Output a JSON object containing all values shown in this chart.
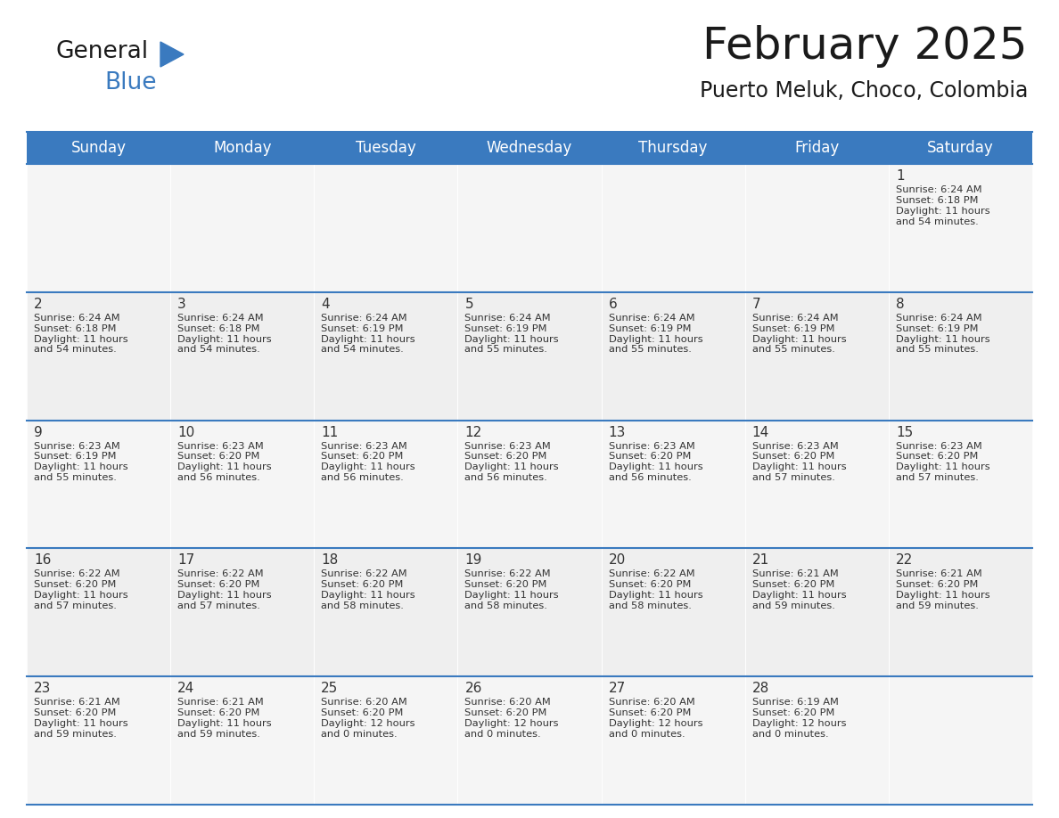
{
  "title": "February 2025",
  "subtitle": "Puerto Meluk, Choco, Colombia",
  "header_color": "#3a7abf",
  "header_text_color": "#ffffff",
  "cell_bg_odd": "#efefef",
  "cell_bg_even": "#ffffff",
  "cell_border_color": "#3a7abf",
  "text_color": "#333333",
  "day_names": [
    "Sunday",
    "Monday",
    "Tuesday",
    "Wednesday",
    "Thursday",
    "Friday",
    "Saturday"
  ],
  "title_fontsize": 36,
  "subtitle_fontsize": 17,
  "header_fontsize": 12,
  "day_num_fontsize": 11,
  "cell_text_fontsize": 8.2,
  "logo_text_general": "General",
  "logo_text_blue": "Blue",
  "calendar": [
    [
      null,
      null,
      null,
      null,
      null,
      null,
      {
        "day": 1,
        "sunrise": "6:24 AM",
        "sunset": "6:18 PM",
        "daylight_line1": "Daylight: 11 hours",
        "daylight_line2": "and 54 minutes."
      }
    ],
    [
      {
        "day": 2,
        "sunrise": "6:24 AM",
        "sunset": "6:18 PM",
        "daylight_line1": "Daylight: 11 hours",
        "daylight_line2": "and 54 minutes."
      },
      {
        "day": 3,
        "sunrise": "6:24 AM",
        "sunset": "6:18 PM",
        "daylight_line1": "Daylight: 11 hours",
        "daylight_line2": "and 54 minutes."
      },
      {
        "day": 4,
        "sunrise": "6:24 AM",
        "sunset": "6:19 PM",
        "daylight_line1": "Daylight: 11 hours",
        "daylight_line2": "and 54 minutes."
      },
      {
        "day": 5,
        "sunrise": "6:24 AM",
        "sunset": "6:19 PM",
        "daylight_line1": "Daylight: 11 hours",
        "daylight_line2": "and 55 minutes."
      },
      {
        "day": 6,
        "sunrise": "6:24 AM",
        "sunset": "6:19 PM",
        "daylight_line1": "Daylight: 11 hours",
        "daylight_line2": "and 55 minutes."
      },
      {
        "day": 7,
        "sunrise": "6:24 AM",
        "sunset": "6:19 PM",
        "daylight_line1": "Daylight: 11 hours",
        "daylight_line2": "and 55 minutes."
      },
      {
        "day": 8,
        "sunrise": "6:24 AM",
        "sunset": "6:19 PM",
        "daylight_line1": "Daylight: 11 hours",
        "daylight_line2": "and 55 minutes."
      }
    ],
    [
      {
        "day": 9,
        "sunrise": "6:23 AM",
        "sunset": "6:19 PM",
        "daylight_line1": "Daylight: 11 hours",
        "daylight_line2": "and 55 minutes."
      },
      {
        "day": 10,
        "sunrise": "6:23 AM",
        "sunset": "6:20 PM",
        "daylight_line1": "Daylight: 11 hours",
        "daylight_line2": "and 56 minutes."
      },
      {
        "day": 11,
        "sunrise": "6:23 AM",
        "sunset": "6:20 PM",
        "daylight_line1": "Daylight: 11 hours",
        "daylight_line2": "and 56 minutes."
      },
      {
        "day": 12,
        "sunrise": "6:23 AM",
        "sunset": "6:20 PM",
        "daylight_line1": "Daylight: 11 hours",
        "daylight_line2": "and 56 minutes."
      },
      {
        "day": 13,
        "sunrise": "6:23 AM",
        "sunset": "6:20 PM",
        "daylight_line1": "Daylight: 11 hours",
        "daylight_line2": "and 56 minutes."
      },
      {
        "day": 14,
        "sunrise": "6:23 AM",
        "sunset": "6:20 PM",
        "daylight_line1": "Daylight: 11 hours",
        "daylight_line2": "and 57 minutes."
      },
      {
        "day": 15,
        "sunrise": "6:23 AM",
        "sunset": "6:20 PM",
        "daylight_line1": "Daylight: 11 hours",
        "daylight_line2": "and 57 minutes."
      }
    ],
    [
      {
        "day": 16,
        "sunrise": "6:22 AM",
        "sunset": "6:20 PM",
        "daylight_line1": "Daylight: 11 hours",
        "daylight_line2": "and 57 minutes."
      },
      {
        "day": 17,
        "sunrise": "6:22 AM",
        "sunset": "6:20 PM",
        "daylight_line1": "Daylight: 11 hours",
        "daylight_line2": "and 57 minutes."
      },
      {
        "day": 18,
        "sunrise": "6:22 AM",
        "sunset": "6:20 PM",
        "daylight_line1": "Daylight: 11 hours",
        "daylight_line2": "and 58 minutes."
      },
      {
        "day": 19,
        "sunrise": "6:22 AM",
        "sunset": "6:20 PM",
        "daylight_line1": "Daylight: 11 hours",
        "daylight_line2": "and 58 minutes."
      },
      {
        "day": 20,
        "sunrise": "6:22 AM",
        "sunset": "6:20 PM",
        "daylight_line1": "Daylight: 11 hours",
        "daylight_line2": "and 58 minutes."
      },
      {
        "day": 21,
        "sunrise": "6:21 AM",
        "sunset": "6:20 PM",
        "daylight_line1": "Daylight: 11 hours",
        "daylight_line2": "and 59 minutes."
      },
      {
        "day": 22,
        "sunrise": "6:21 AM",
        "sunset": "6:20 PM",
        "daylight_line1": "Daylight: 11 hours",
        "daylight_line2": "and 59 minutes."
      }
    ],
    [
      {
        "day": 23,
        "sunrise": "6:21 AM",
        "sunset": "6:20 PM",
        "daylight_line1": "Daylight: 11 hours",
        "daylight_line2": "and 59 minutes."
      },
      {
        "day": 24,
        "sunrise": "6:21 AM",
        "sunset": "6:20 PM",
        "daylight_line1": "Daylight: 11 hours",
        "daylight_line2": "and 59 minutes."
      },
      {
        "day": 25,
        "sunrise": "6:20 AM",
        "sunset": "6:20 PM",
        "daylight_line1": "Daylight: 12 hours",
        "daylight_line2": "and 0 minutes."
      },
      {
        "day": 26,
        "sunrise": "6:20 AM",
        "sunset": "6:20 PM",
        "daylight_line1": "Daylight: 12 hours",
        "daylight_line2": "and 0 minutes."
      },
      {
        "day": 27,
        "sunrise": "6:20 AM",
        "sunset": "6:20 PM",
        "daylight_line1": "Daylight: 12 hours",
        "daylight_line2": "and 0 minutes."
      },
      {
        "day": 28,
        "sunrise": "6:19 AM",
        "sunset": "6:20 PM",
        "daylight_line1": "Daylight: 12 hours",
        "daylight_line2": "and 0 minutes."
      },
      null
    ]
  ]
}
